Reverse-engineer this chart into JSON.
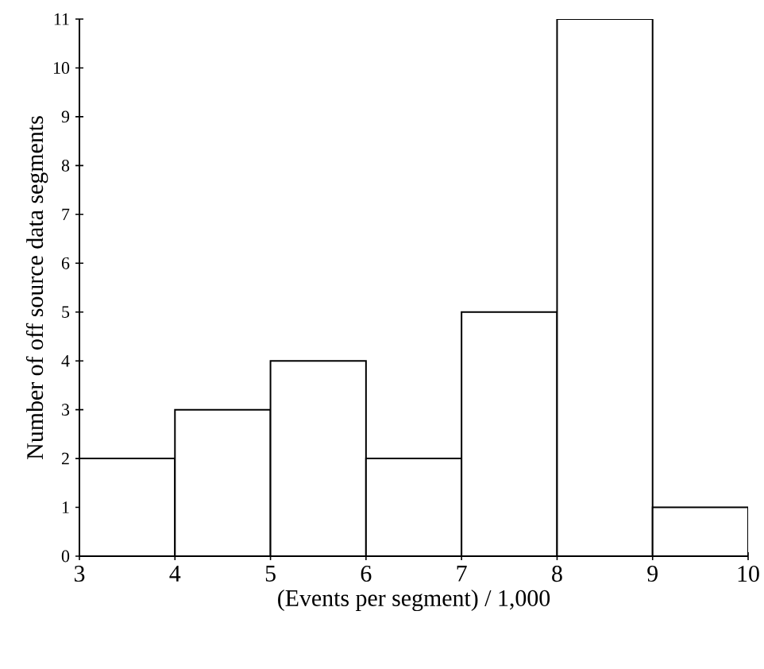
{
  "chart_data": {
    "type": "histogram",
    "xlabel": "(Events per segment) / 1,000",
    "ylabel": "Number of off source data segments",
    "bins": [
      3,
      4,
      5,
      6,
      7,
      8,
      9,
      10
    ],
    "values": [
      2,
      3,
      4,
      2,
      5,
      11,
      1
    ],
    "color": "#ffffff",
    "xlim": [
      3,
      10
    ],
    "ylim": [
      0,
      11
    ],
    "xticks": [
      3,
      4,
      5,
      6,
      7,
      8,
      9,
      10
    ],
    "yticks": [
      0,
      1,
      2,
      3,
      4,
      5,
      6,
      7,
      8,
      9,
      10,
      11
    ]
  }
}
